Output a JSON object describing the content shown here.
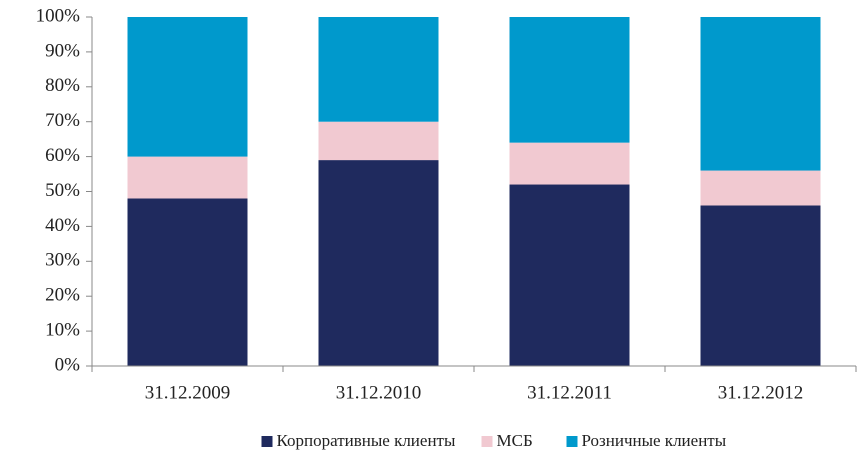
{
  "chart_data": {
    "type": "stacked_bar",
    "categories": [
      "31.12.2009",
      "31.12.2010",
      "31.12.2011",
      "31.12.2012"
    ],
    "series": [
      {
        "name": "Корпоративные клиенты",
        "color": "#1f2a5e",
        "values": [
          48,
          59,
          52,
          46
        ]
      },
      {
        "name": "МСБ",
        "color": "#f1c9d1",
        "values": [
          12,
          11,
          12,
          10
        ]
      },
      {
        "name": "Розничные клиенты",
        "color": "#0099cc",
        "values": [
          40,
          30,
          36,
          44
        ]
      }
    ],
    "ylim": [
      0,
      100
    ],
    "yticks": [
      {
        "value": 0,
        "label": "0%"
      },
      {
        "value": 10,
        "label": "10%"
      },
      {
        "value": 20,
        "label": "20%"
      },
      {
        "value": 30,
        "label": "30%"
      },
      {
        "value": 40,
        "label": "40%"
      },
      {
        "value": 50,
        "label": "50%"
      },
      {
        "value": 60,
        "label": "60%"
      },
      {
        "value": 70,
        "label": "70%"
      },
      {
        "value": 80,
        "label": "80%"
      },
      {
        "value": 90,
        "label": "90%"
      },
      {
        "value": 100,
        "label": "100%"
      }
    ],
    "legend": "bottom"
  }
}
